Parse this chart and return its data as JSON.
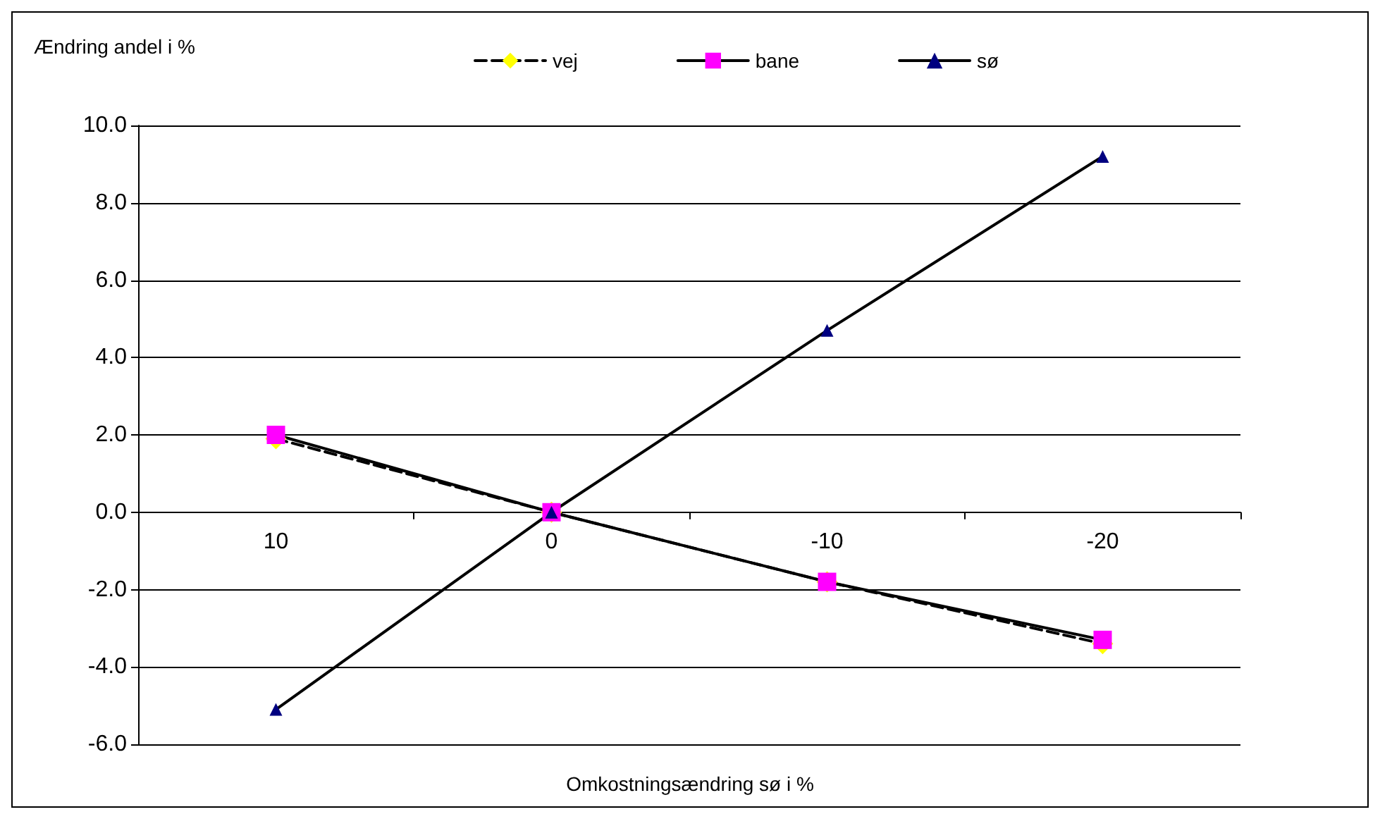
{
  "chart_data": {
    "type": "line",
    "ylabel": "Ændring andel i %",
    "xlabel": "Omkostningsændring sø i %",
    "categories": [
      "10",
      "0",
      "-10",
      "-20"
    ],
    "series": [
      {
        "name": "vej",
        "color": "#ffff00",
        "values": [
          1.9,
          0,
          -1.8,
          -3.4
        ],
        "marker": "diamond",
        "line_style": "dashed"
      },
      {
        "name": "bane",
        "color": "#ff00ff",
        "values": [
          2.0,
          0,
          -1.8,
          -3.3
        ],
        "marker": "square",
        "line_style": "solid"
      },
      {
        "name": "sø",
        "color": "#000080",
        "values": [
          -5.1,
          0,
          4.7,
          9.2
        ],
        "marker": "triangle",
        "line_style": "solid"
      }
    ],
    "ylim": [
      -6,
      10
    ],
    "yticks": [
      {
        "value": -6,
        "label": "-6.0"
      },
      {
        "value": -4,
        "label": "-4.0"
      },
      {
        "value": -2,
        "label": "-2.0"
      },
      {
        "value": 0,
        "label": "0.0"
      },
      {
        "value": 2,
        "label": "2.0"
      },
      {
        "value": 4,
        "label": "4.0"
      },
      {
        "value": 6,
        "label": "6.0"
      },
      {
        "value": 8,
        "label": "8.0"
      },
      {
        "value": 10,
        "label": "10.0"
      }
    ],
    "grid": "y",
    "legend": "top"
  }
}
